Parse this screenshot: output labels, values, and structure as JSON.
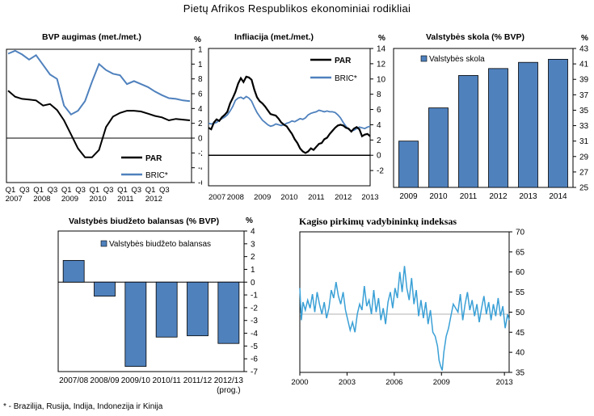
{
  "title": "Pietų Afrikos Respublikos ekonominiai rodikliai",
  "footnote": "* - Brazilija, Rusija, Indija, Indonezija ir Kinija",
  "colors": {
    "par": "#000000",
    "bric": "#4f81bd",
    "bar": "#4f81bd",
    "pmi": "#3aa0d6",
    "refline": "#bbbbbb"
  },
  "chart_data": [
    {
      "id": "gdp",
      "type": "line",
      "title": "BVP augimas (met./met.)",
      "unit_label": "%",
      "ylim": [
        -6,
        12
      ],
      "yticks": [
        -6,
        -4,
        -2,
        0,
        2,
        4,
        6,
        8,
        10,
        12
      ],
      "x_tick_labels": [
        [
          "Q1",
          "2007"
        ],
        [
          "Q3",
          ""
        ],
        [
          "Q1",
          "2008"
        ],
        [
          "Q3",
          ""
        ],
        [
          "Q1",
          "2009"
        ],
        [
          "Q3",
          ""
        ],
        [
          "Q1",
          "2010"
        ],
        [
          "Q3",
          ""
        ],
        [
          "Q1",
          "2011"
        ],
        [
          "Q3",
          ""
        ],
        [
          "Q1",
          "2012"
        ],
        [
          "Q3",
          ""
        ]
      ],
      "x_count": 27,
      "legend": [
        "PAR",
        "BRIC*"
      ],
      "series": [
        {
          "name": "PAR",
          "values": [
            6.4,
            5.6,
            5.3,
            5.2,
            5.1,
            4.4,
            4.6,
            3.8,
            2.4,
            0.5,
            -1.4,
            -2.6,
            -2.6,
            -1.6,
            1.5,
            2.9,
            3.4,
            3.7,
            3.7,
            3.6,
            3.3,
            3.0,
            2.8,
            2.4,
            2.6,
            2.5,
            2.4
          ]
        },
        {
          "name": "BRIC*",
          "values": [
            11.4,
            11.8,
            11.3,
            10.6,
            11.2,
            9.9,
            8.6,
            8.0,
            4.4,
            3.2,
            3.7,
            5.0,
            7.6,
            10.0,
            9.2,
            8.7,
            8.5,
            7.3,
            7.7,
            7.3,
            6.9,
            6.3,
            5.8,
            5.4,
            5.3,
            5.1,
            5.0
          ]
        }
      ]
    },
    {
      "id": "inflation",
      "type": "line",
      "title": "Infliacija (met./met.)",
      "unit_label": "%",
      "ylim": [
        -4,
        14
      ],
      "yticks": [
        -2,
        0,
        2,
        4,
        6,
        8,
        10,
        12,
        14
      ],
      "x_tick_labels": [
        "2007",
        "2008",
        "2009",
        "2010",
        "2011",
        "2012",
        "2013"
      ],
      "x_range": [
        2007,
        2013
      ],
      "legend": [
        "PAR",
        "BRIC*"
      ],
      "series": [
        {
          "name": "PAR",
          "x": [
            2007.0,
            2007.1,
            2007.2,
            2007.3,
            2007.4,
            2007.5,
            2007.6,
            2007.7,
            2007.8,
            2007.9,
            2008.0,
            2008.1,
            2008.2,
            2008.3,
            2008.4,
            2008.5,
            2008.6,
            2008.7,
            2008.8,
            2008.9,
            2009.0,
            2009.1,
            2009.2,
            2009.3,
            2009.4,
            2009.5,
            2009.6,
            2009.7,
            2009.8,
            2009.9,
            2010.0,
            2010.1,
            2010.2,
            2010.3,
            2010.4,
            2010.5,
            2010.6,
            2010.7,
            2010.8,
            2010.9,
            2011.0,
            2011.1,
            2011.2,
            2011.3,
            2011.4,
            2011.5,
            2011.6,
            2011.7,
            2011.8,
            2011.9,
            2012.0,
            2012.1,
            2012.2,
            2012.3,
            2012.4,
            2012.5,
            2012.6,
            2012.7,
            2012.8,
            2012.9,
            2013.0
          ],
          "values": [
            3.6,
            3.4,
            4.3,
            4.7,
            4.5,
            5.0,
            5.3,
            5.7,
            6.8,
            7.5,
            8.3,
            9.4,
            10.1,
            9.6,
            10.3,
            10.2,
            9.9,
            8.6,
            7.6,
            7.1,
            6.8,
            6.4,
            5.9,
            5.4,
            5.3,
            5.2,
            4.8,
            4.3,
            4.0,
            3.8,
            3.3,
            2.8,
            2.1,
            1.6,
            0.9,
            0.5,
            0.3,
            0.5,
            0.9,
            0.7,
            1.1,
            1.5,
            1.6,
            2.1,
            2.3,
            2.8,
            3.2,
            3.6,
            3.9,
            4.0,
            3.9,
            3.6,
            3.5,
            3.1,
            3.5,
            3.7,
            3.4,
            2.5,
            2.7,
            2.8,
            2.5
          ]
        },
        {
          "name": "BRIC*",
          "x": [
            2007.0,
            2007.1,
            2007.2,
            2007.3,
            2007.4,
            2007.5,
            2007.6,
            2007.7,
            2007.8,
            2007.9,
            2008.0,
            2008.1,
            2008.2,
            2008.3,
            2008.4,
            2008.5,
            2008.6,
            2008.7,
            2008.8,
            2008.9,
            2009.0,
            2009.1,
            2009.2,
            2009.3,
            2009.4,
            2009.5,
            2009.6,
            2009.7,
            2009.8,
            2009.9,
            2010.0,
            2010.1,
            2010.2,
            2010.3,
            2010.4,
            2010.5,
            2010.6,
            2010.7,
            2010.8,
            2010.9,
            2011.0,
            2011.1,
            2011.2,
            2011.3,
            2011.4,
            2011.5,
            2011.6,
            2011.7,
            2011.8,
            2011.9,
            2012.0,
            2012.1,
            2012.2,
            2012.3,
            2012.4,
            2012.5,
            2012.6,
            2012.7,
            2012.8,
            2012.9,
            2013.0
          ],
          "values": [
            4.2,
            4.1,
            4.2,
            4.3,
            4.6,
            4.8,
            5.0,
            5.3,
            5.8,
            6.4,
            7.2,
            7.5,
            7.6,
            7.4,
            7.7,
            7.5,
            7.1,
            6.3,
            5.6,
            5.1,
            4.6,
            4.3,
            4.0,
            3.8,
            3.9,
            4.1,
            4.0,
            3.9,
            4.0,
            4.2,
            4.3,
            4.5,
            4.4,
            4.6,
            4.8,
            4.7,
            4.9,
            5.3,
            5.5,
            5.6,
            5.7,
            5.9,
            5.8,
            5.7,
            5.8,
            5.7,
            5.7,
            5.6,
            5.3,
            4.9,
            4.3,
            3.8,
            3.4,
            3.2,
            3.3,
            3.5,
            3.7,
            3.6,
            3.5,
            3.7,
            3.8
          ]
        }
      ]
    },
    {
      "id": "debt",
      "type": "bar",
      "title": "Valstybės skola (% BVP)",
      "unit_label": "%",
      "legend": "Valstybės skola",
      "ylim": [
        25,
        43
      ],
      "yticks": [
        25,
        27,
        29,
        31,
        33,
        35,
        37,
        39,
        41,
        43
      ],
      "categories": [
        "2009",
        "2010",
        "2011",
        "2012",
        "2013",
        "2014"
      ],
      "values": [
        31.0,
        35.3,
        39.5,
        40.4,
        41.2,
        41.6
      ]
    },
    {
      "id": "budget",
      "type": "bar",
      "title": "Valstybės biudžeto balansas (% BVP)",
      "unit_label": "%",
      "legend": "Valstybės biudžeto balansas",
      "ylim": [
        -7,
        4
      ],
      "yticks": [
        -7,
        -6,
        -5,
        -4,
        -3,
        -2,
        -1,
        0,
        1,
        2,
        3,
        4
      ],
      "categories": [
        "2007/08",
        "2008/09",
        "2009/10",
        "2010/11",
        "2011/12",
        "2012/13"
      ],
      "category_sublabels": [
        "",
        "",
        "",
        "",
        "",
        "(prog.)"
      ],
      "values": [
        1.7,
        -1.1,
        -6.6,
        -4.3,
        -4.2,
        -4.8
      ]
    },
    {
      "id": "pmi",
      "type": "line",
      "title": "Kagiso pirkimų vadybininkų indeksas",
      "ylim": [
        35,
        70
      ],
      "yticks": [
        35,
        40,
        45,
        50,
        55,
        60,
        65,
        70
      ],
      "x_tick_labels": [
        "2000",
        "2003",
        "2006",
        "2009",
        "2013"
      ],
      "x_tick_values": [
        2000,
        2003,
        2006,
        2009,
        2013
      ],
      "x_range": [
        2000,
        2013.3
      ],
      "reference_line": 49.5,
      "series": [
        {
          "name": "",
          "x": [
            2000.0,
            2000.1,
            2000.2,
            2000.35,
            2000.5,
            2000.65,
            2000.8,
            2000.95,
            2001.1,
            2001.25,
            2001.4,
            2001.55,
            2001.7,
            2001.85,
            2002.0,
            2002.15,
            2002.3,
            2002.45,
            2002.6,
            2002.75,
            2002.9,
            2003.05,
            2003.2,
            2003.35,
            2003.5,
            2003.65,
            2003.8,
            2003.95,
            2004.1,
            2004.25,
            2004.4,
            2004.55,
            2004.7,
            2004.85,
            2005.0,
            2005.15,
            2005.3,
            2005.45,
            2005.6,
            2005.75,
            2005.9,
            2006.05,
            2006.2,
            2006.35,
            2006.5,
            2006.65,
            2006.8,
            2006.95,
            2007.1,
            2007.25,
            2007.4,
            2007.55,
            2007.7,
            2007.85,
            2008.0,
            2008.15,
            2008.3,
            2008.45,
            2008.6,
            2008.75,
            2008.85,
            2008.95,
            2009.05,
            2009.15,
            2009.3,
            2009.45,
            2009.6,
            2009.75,
            2009.9,
            2010.05,
            2010.2,
            2010.35,
            2010.5,
            2010.65,
            2010.8,
            2010.95,
            2011.1,
            2011.25,
            2011.4,
            2011.55,
            2011.7,
            2011.85,
            2012.0,
            2012.15,
            2012.3,
            2012.45,
            2012.6,
            2012.75,
            2012.9,
            2013.05,
            2013.2,
            2013.3
          ],
          "values": [
            56.0,
            48.0,
            52.5,
            50.5,
            53.0,
            51.0,
            54.5,
            50.0,
            55.0,
            52.0,
            49.5,
            52.5,
            48.5,
            51.0,
            55.5,
            53.5,
            57.5,
            54.0,
            52.0,
            55.0,
            50.5,
            48.0,
            45.5,
            47.5,
            45.0,
            49.5,
            52.0,
            50.5,
            56.5,
            51.5,
            53.0,
            49.5,
            55.5,
            50.0,
            53.5,
            48.0,
            51.0,
            47.0,
            52.5,
            55.0,
            51.0,
            56.0,
            53.5,
            60.0,
            55.0,
            61.5,
            56.0,
            53.0,
            58.5,
            52.0,
            55.5,
            49.0,
            53.0,
            48.5,
            52.5,
            47.0,
            50.5,
            45.0,
            44.0,
            41.5,
            38.0,
            36.5,
            35.5,
            40.0,
            44.0,
            46.0,
            49.0,
            52.0,
            51.0,
            50.0,
            54.5,
            48.0,
            52.0,
            55.0,
            50.5,
            53.0,
            49.0,
            52.0,
            47.5,
            51.0,
            54.0,
            49.5,
            52.5,
            48.0,
            52.0,
            49.0,
            53.5,
            49.0,
            51.5,
            46.0,
            49.5,
            48.0
          ]
        }
      ]
    }
  ]
}
